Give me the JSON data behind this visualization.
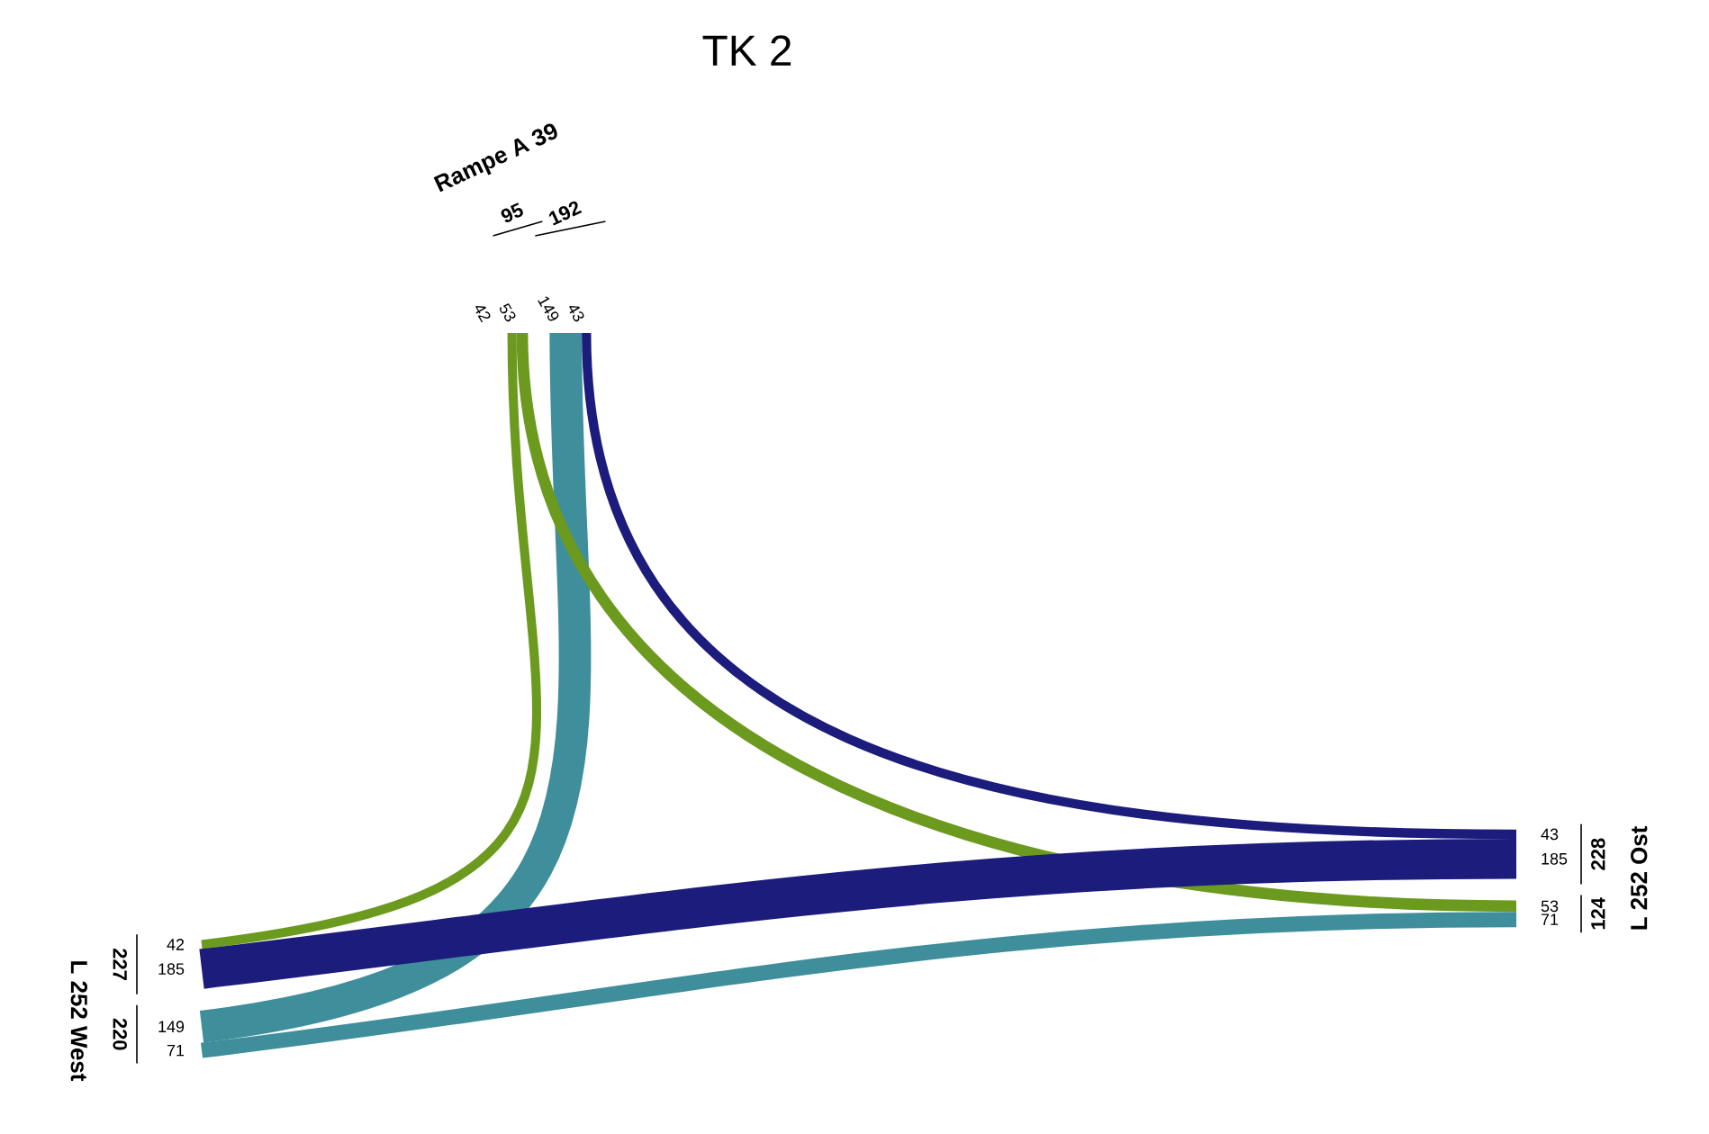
{
  "chart_data": {
    "type": "other",
    "title": "TK 2",
    "categories": [
      "Rampe A 39",
      "L 252 Ost",
      "L 252 West"
    ],
    "series": [
      {
        "color": "#6b9a1e",
        "values": [
          null,
          53,
          42
        ]
      },
      {
        "color": "#1c1c7c",
        "values": [
          43,
          null,
          185
        ]
      },
      {
        "color": "#3e8e9c",
        "values": [
          149,
          71,
          null
        ]
      }
    ],
    "data_labels": true,
    "annotations": [
      "53",
      "42",
      "43",
      "185",
      "149",
      "71"
    ],
    "totals": [
      [
        "95",
        "192"
      ],
      [
        "228",
        "124"
      ],
      [
        "220",
        "227"
      ]
    ]
  }
}
